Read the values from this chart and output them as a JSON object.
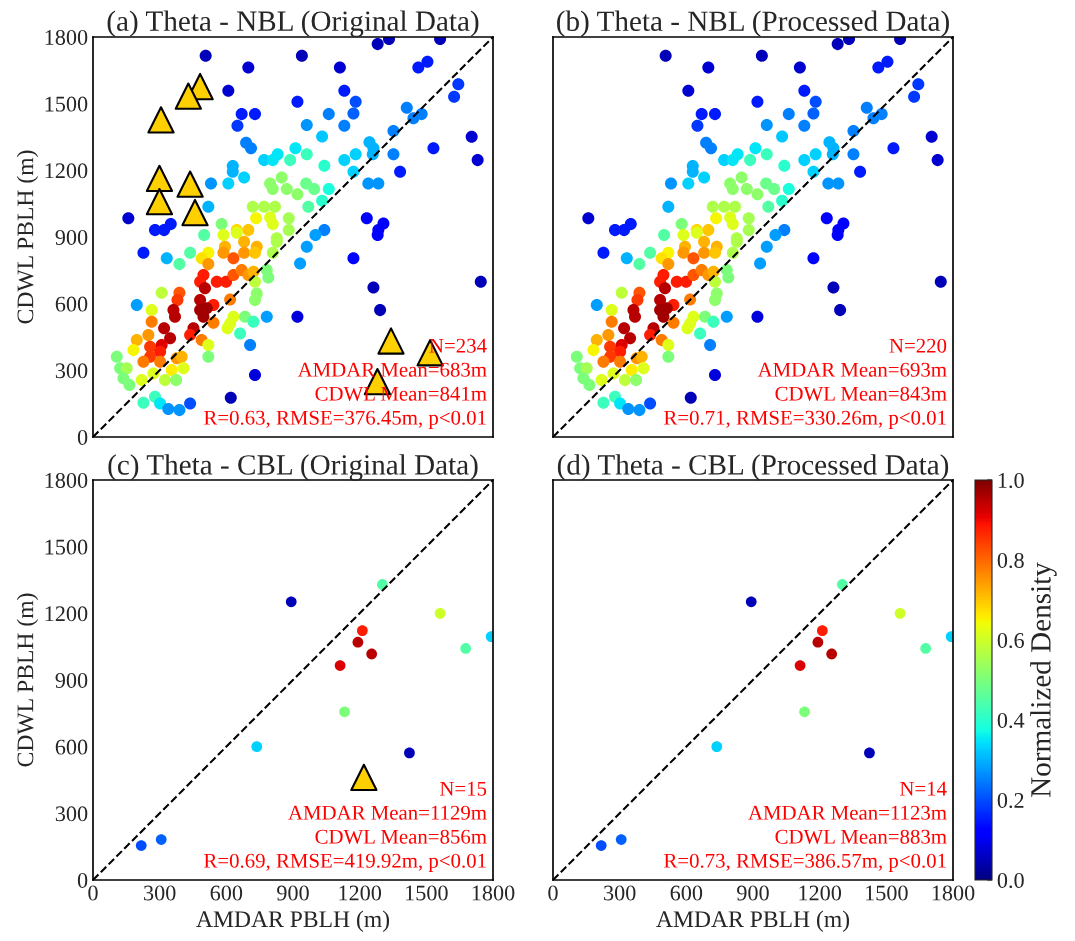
{
  "chart_data": [
    {
      "type": "scatter",
      "title": "(a) Theta - NBL (Original Data)",
      "ylabel": "CDWL PBLH (m)",
      "xlim": [
        0,
        1800
      ],
      "ylim": [
        0,
        1800
      ],
      "xticks": [
        0,
        300,
        600,
        900,
        1200,
        1500,
        1800
      ],
      "yticks": [
        0,
        300,
        600,
        900,
        1200,
        1500,
        1800
      ],
      "tick_labels": "y",
      "legend": false,
      "grid": false,
      "annotations": [
        "N=234",
        "AMDAR Mean=683m",
        "CDWL Mean=841m",
        "R=0.63, RMSE=376.45m, p<0.01"
      ],
      "series": [
        {
          "type": "scatter",
          "marker": "circle",
          "x": [
            507,
            699,
            940,
            1111,
            1281,
            1332,
            1562,
            1464,
            1505,
            1644,
            1625,
            1704,
            1731,
            1532,
            1382,
            1352,
            1352,
            1412,
            1479,
            1442,
            609,
            669,
            729,
            650,
            920,
            1131,
            1182,
            1172,
            1061,
            1131,
            962,
            1031,
            689,
            711,
            1244,
            1262,
            1259,
            1182,
            1131,
            1172,
            770,
            809,
            831,
            911,
            962,
            887,
            1041,
            629,
            629,
            680,
            531,
            609,
            1239,
            1284,
            1061,
            1031,
            969,
            797,
            849,
            809,
            872,
            959,
            995,
            920,
            719,
            770,
            819,
            734,
            797,
            809,
            881,
            881,
            519,
            159,
            279,
            320,
            350,
            1232,
            1307,
            1284,
            1281,
            1041,
            1001,
            579,
            647,
            699,
            587,
            500,
            827,
            227,
            332,
            389,
            437,
            519,
            489,
            594,
            587,
            647,
            680,
            737,
            680,
            729,
            632,
            519,
            809,
            827,
            962,
            932,
            1172,
            497,
            482,
            557,
            599,
            632,
            669,
            699,
            722,
            729,
            782,
            789,
            504,
            737,
            729,
            617,
            309,
            389,
            197,
            380,
            482,
            542,
            264,
            362,
            482,
            512,
            369,
            497,
            542,
            264,
            632,
            617,
            605,
            684,
            722,
            782,
            920,
            320,
            347,
            452,
            437,
            489,
            519,
            662,
            707,
            197,
            249,
            182,
            257,
            309,
            302,
            257,
            227,
            302,
            377,
            399,
            407,
            354,
            272,
            107,
            122,
            152,
            137,
            164,
            219,
            324,
            374,
            519,
            227,
            279,
            302,
            339,
            389,
            437,
            729,
            620,
            1262,
            1292,
            1745
          ],
          "values": [
            1716,
            1663,
            1716,
            1663,
            1768,
            1791,
            1791,
            1663,
            1689,
            1587,
            1531,
            1351,
            1246,
            1299,
            1194,
            1272,
            1377,
            1482,
            1453,
            1434,
            1558,
            1453,
            1453,
            1401,
            1509,
            1558,
            1509,
            1456,
            1453,
            1401,
            1404,
            1352,
            1324,
            1299,
            1326,
            1299,
            1272,
            1272,
            1246,
            1194,
            1246,
            1246,
            1272,
            1299,
            1272,
            1246,
            1221,
            1219,
            1194,
            1168,
            1141,
            1141,
            1141,
            1141,
            1116,
            1063,
            1036,
            1141,
            1168,
            1116,
            1116,
            1141,
            1116,
            1092,
            1036,
            1036,
            1036,
            984,
            988,
            958,
            984,
            931,
            1036,
            984,
            931,
            931,
            958,
            984,
            961,
            931,
            909,
            931,
            909,
            958,
            931,
            931,
            909,
            909,
            894,
            829,
            804,
            778,
            829,
            829,
            804,
            856,
            829,
            919,
            879,
            856,
            829,
            829,
            804,
            778,
            829,
            879,
            856,
            781,
            804,
            729,
            699,
            699,
            699,
            729,
            751,
            729,
            744,
            699,
            751,
            718,
            669,
            646,
            616,
            619,
            649,
            649,
            594,
            616,
            616,
            594,
            571,
            571,
            571,
            579,
            541,
            541,
            514,
            519,
            541,
            511,
            489,
            541,
            519,
            541,
            541,
            489,
            444,
            489,
            459,
            436,
            414,
            466,
            414,
            436,
            459,
            391,
            406,
            414,
            384,
            361,
            339,
            339,
            354,
            361,
            309,
            301,
            286,
            361,
            309,
            309,
            264,
            234,
            256,
            256,
            256,
            361,
            154,
            181,
            151,
            126,
            121,
            151,
            279,
            177,
            673,
            571,
            699
          ],
          "colors": [
            "#0000b9",
            "#0000d0",
            "#0000b9",
            "#0000d0",
            "#0000b9",
            "#0000b9",
            "#0000b9",
            "#001aff",
            "#001aff",
            "#0038ff",
            "#0038ff",
            "#0000d0",
            "#0000d0",
            "#001aff",
            "#001aff",
            "#0080ff",
            "#0080ff",
            "#0080ff",
            "#0080ff",
            "#0080ff",
            "#0000d0",
            "#001aff",
            "#001aff",
            "#0038ff",
            "#001aff",
            "#001aff",
            "#004dff",
            "#0061ff",
            "#0080ff",
            "#0080ff",
            "#0094ff",
            "#00c7ff",
            "#0080ff",
            "#0080ff",
            "#00b3ff",
            "#00b3ff",
            "#00b3ff",
            "#00d1ff",
            "#00d1ff",
            "#00d1ff",
            "#00d1ff",
            "#00e6f7",
            "#00e6f7",
            "#00e6f7",
            "#3affbd",
            "#3affbd",
            "#29ffcd",
            "#00b3ff",
            "#00b3ff",
            "#00d1ff",
            "#0094ff",
            "#00d1ff",
            "#0094ff",
            "#0094ff",
            "#19ffde",
            "#29ffcd",
            "#52ffa4",
            "#8cff6b",
            "#8cff6b",
            "#8cff6b",
            "#8cff6b",
            "#6bff8c",
            "#6bff8c",
            "#8cff6b",
            "#adff4a",
            "#adff4a",
            "#adff4a",
            "#f7f600",
            "#deff19",
            "#deff19",
            "#a4ff52",
            "#a4ff52",
            "#00b3ff",
            "#0000d0",
            "#001aff",
            "#001aff",
            "#001aff",
            "#0000ff",
            "#0000ff",
            "#0000ff",
            "#0000ff",
            "#0080ff",
            "#009eff",
            "#7bff7b",
            "#ffd900",
            "#ffc600",
            "#deff19",
            "#52ffa4",
            "#adff4a",
            "#001aff",
            "#00b3ff",
            "#52ffa4",
            "#52ffa4",
            "#f7f600",
            "#ffe300",
            "#ffb300",
            "#ff9700",
            "#deff19",
            "#ffb300",
            "#ffb300",
            "#ff9700",
            "#ffc600",
            "#ff5500",
            "#ff9700",
            "#adff4a",
            "#adff4a",
            "#009eff",
            "#009eff",
            "#0000ff",
            "#ff1c00",
            "#ff1c00",
            "#ff1c00",
            "#ff1c00",
            "#ff5500",
            "#ff7b00",
            "#ff9700",
            "#ffb300",
            "#bdff3a",
            "#7bff7b",
            "#7bff7b",
            "#b90000",
            "#8cff6b",
            "#8cff6b",
            "#ff7b00",
            "#bdff3a",
            "#ff5500",
            "#009eff",
            "#ff3800",
            "#b90000",
            "#ff1c00",
            "#deff19",
            "#b90000",
            "#a20000",
            "#a20000",
            "#b90000",
            "#a20000",
            "#ff7b00",
            "#ff7b00",
            "#deff19",
            "#deff19",
            "#deff19",
            "#7bff7b",
            "#3affbd",
            "#009eff",
            "#0000dc",
            "#b90000",
            "#b90000",
            "#b90000",
            "#ff1c00",
            "#ff7b00",
            "#deff19",
            "#3affbd",
            "#0080ff",
            "#ffb300",
            "#ff9700",
            "#f7f600",
            "#ff3800",
            "#dc0000",
            "#ff1c00",
            "#ff3800",
            "#ff7b00",
            "#ff7b00",
            "#ff9700",
            "#ffb300",
            "#deff19",
            "#ffec00",
            "#deff19",
            "#7bff7b",
            "#7bff7b",
            "#a4ff52",
            "#7bff7b",
            "#7bff7b",
            "#deff19",
            "#bdff3a",
            "#8cff6b",
            "#7bff7b",
            "#3affbd",
            "#3affbd",
            "#00e6f7",
            "#0094ff",
            "#0094ff",
            "#004dff",
            "#0000dc",
            "#0000b9",
            "#0000b9",
            "#0000b9",
            "#0000b9"
          ]
        },
        {
          "type": "scatter",
          "marker": "triangle",
          "color": "#ffd000",
          "x": [
            482,
            429,
            306,
            299,
            437,
            299,
            459,
            1341,
            1517,
            1280
          ],
          "values": [
            1577,
            1534,
            1427,
            1164,
            1138,
            1059,
            1010,
            432,
            379,
            249
          ]
        },
        {
          "type": "line",
          "x": [
            0,
            1800
          ],
          "values": [
            0,
            1800
          ],
          "color": "#000000",
          "line_style": "dashed"
        }
      ]
    },
    {
      "type": "scatter",
      "title": "(b) Theta - NBL (Processed Data)",
      "xlim": [
        0,
        1800
      ],
      "ylim": [
        0,
        1800
      ],
      "xticks": [
        0,
        300,
        600,
        900,
        1200,
        1500,
        1800
      ],
      "yticks": [
        0,
        300,
        600,
        900,
        1200,
        1500,
        1800
      ],
      "tick_labels": false,
      "legend": false,
      "grid": false,
      "annotations": [
        "N=220",
        "AMDAR Mean=693m",
        "CDWL Mean=843m",
        "R=0.71, RMSE=330.26m, p<0.01"
      ],
      "series": [
        {
          "type": "scatter",
          "marker": "circle",
          "x": [
            507,
            699,
            940,
            1111,
            1281,
            1332,
            1562,
            1464,
            1505,
            1644,
            1625,
            1704,
            1731,
            1532,
            1382,
            1352,
            1352,
            1412,
            1479,
            1442,
            609,
            669,
            729,
            650,
            920,
            1131,
            1182,
            1172,
            1061,
            1131,
            962,
            1031,
            689,
            711,
            1244,
            1262,
            1259,
            1182,
            1131,
            1172,
            770,
            809,
            831,
            911,
            962,
            887,
            1041,
            629,
            629,
            680,
            531,
            609,
            1239,
            1284,
            1061,
            1031,
            969,
            797,
            849,
            809,
            872,
            959,
            995,
            920,
            719,
            770,
            819,
            734,
            797,
            809,
            881,
            881,
            519,
            159,
            279,
            320,
            350,
            1232,
            1307,
            1284,
            1281,
            1041,
            1001,
            579,
            647,
            699,
            587,
            500,
            827,
            227,
            332,
            389,
            437,
            519,
            489,
            594,
            587,
            647,
            680,
            737,
            680,
            729,
            632,
            519,
            809,
            827,
            962,
            932,
            1172,
            497,
            482,
            557,
            599,
            632,
            669,
            699,
            722,
            729,
            782,
            789,
            504,
            737,
            729,
            617,
            309,
            389,
            197,
            380,
            482,
            542,
            264,
            362,
            482,
            512,
            369,
            497,
            542,
            264,
            632,
            617,
            605,
            684,
            722,
            782,
            920,
            320,
            347,
            452,
            437,
            489,
            519,
            662,
            707,
            197,
            249,
            182,
            257,
            309,
            302,
            257,
            227,
            302,
            377,
            399,
            407,
            354,
            272,
            107,
            122,
            152,
            137,
            164,
            219,
            324,
            374,
            519,
            227,
            279,
            302,
            339,
            389,
            437,
            729,
            620,
            1262,
            1292,
            1745
          ],
          "values": [
            1716,
            1663,
            1716,
            1663,
            1768,
            1791,
            1791,
            1663,
            1689,
            1587,
            1531,
            1351,
            1246,
            1299,
            1194,
            1272,
            1377,
            1482,
            1453,
            1434,
            1558,
            1453,
            1453,
            1401,
            1509,
            1558,
            1509,
            1456,
            1453,
            1401,
            1404,
            1352,
            1324,
            1299,
            1326,
            1299,
            1272,
            1272,
            1246,
            1194,
            1246,
            1246,
            1272,
            1299,
            1272,
            1246,
            1221,
            1219,
            1194,
            1168,
            1141,
            1141,
            1141,
            1141,
            1116,
            1063,
            1036,
            1141,
            1168,
            1116,
            1116,
            1141,
            1116,
            1092,
            1036,
            1036,
            1036,
            984,
            988,
            958,
            984,
            931,
            1036,
            984,
            931,
            931,
            958,
            984,
            961,
            931,
            909,
            931,
            909,
            958,
            931,
            931,
            909,
            909,
            894,
            829,
            804,
            778,
            829,
            829,
            804,
            856,
            829,
            919,
            879,
            856,
            829,
            829,
            804,
            778,
            829,
            879,
            856,
            781,
            804,
            729,
            699,
            699,
            699,
            729,
            751,
            729,
            744,
            699,
            751,
            718,
            669,
            646,
            616,
            619,
            649,
            649,
            594,
            616,
            616,
            594,
            571,
            571,
            571,
            579,
            541,
            541,
            514,
            519,
            541,
            511,
            489,
            541,
            519,
            541,
            541,
            489,
            444,
            489,
            459,
            436,
            414,
            466,
            414,
            436,
            459,
            391,
            406,
            414,
            384,
            361,
            339,
            339,
            354,
            361,
            309,
            301,
            286,
            361,
            309,
            309,
            264,
            234,
            256,
            256,
            256,
            361,
            154,
            181,
            151,
            126,
            121,
            151,
            279,
            177,
            673,
            571,
            699
          ],
          "colors": [
            "#0000b9",
            "#0000d0",
            "#0000b9",
            "#0000d0",
            "#0000b9",
            "#0000b9",
            "#0000b9",
            "#001aff",
            "#001aff",
            "#0038ff",
            "#0038ff",
            "#0000d0",
            "#0000d0",
            "#001aff",
            "#001aff",
            "#0080ff",
            "#0080ff",
            "#0080ff",
            "#0080ff",
            "#0080ff",
            "#0000d0",
            "#001aff",
            "#001aff",
            "#0038ff",
            "#001aff",
            "#001aff",
            "#004dff",
            "#0061ff",
            "#0080ff",
            "#0080ff",
            "#0094ff",
            "#00c7ff",
            "#0080ff",
            "#0080ff",
            "#00b3ff",
            "#00b3ff",
            "#00b3ff",
            "#00d1ff",
            "#00d1ff",
            "#00d1ff",
            "#00d1ff",
            "#00e6f7",
            "#00e6f7",
            "#00e6f7",
            "#3affbd",
            "#3affbd",
            "#29ffcd",
            "#00b3ff",
            "#00b3ff",
            "#00d1ff",
            "#0094ff",
            "#00d1ff",
            "#0094ff",
            "#0094ff",
            "#19ffde",
            "#29ffcd",
            "#52ffa4",
            "#8cff6b",
            "#8cff6b",
            "#8cff6b",
            "#8cff6b",
            "#6bff8c",
            "#6bff8c",
            "#8cff6b",
            "#adff4a",
            "#adff4a",
            "#adff4a",
            "#f7f600",
            "#deff19",
            "#deff19",
            "#a4ff52",
            "#a4ff52",
            "#00b3ff",
            "#0000d0",
            "#001aff",
            "#001aff",
            "#001aff",
            "#0000ff",
            "#0000ff",
            "#0000ff",
            "#0000ff",
            "#0080ff",
            "#009eff",
            "#7bff7b",
            "#ffd900",
            "#ffc600",
            "#deff19",
            "#52ffa4",
            "#adff4a",
            "#001aff",
            "#00b3ff",
            "#52ffa4",
            "#52ffa4",
            "#f7f600",
            "#ffe300",
            "#ffb300",
            "#ff9700",
            "#deff19",
            "#ffb300",
            "#ffb300",
            "#ff9700",
            "#ffc600",
            "#ff5500",
            "#ff9700",
            "#adff4a",
            "#adff4a",
            "#009eff",
            "#009eff",
            "#0000ff",
            "#ff1c00",
            "#ff1c00",
            "#ff1c00",
            "#ff1c00",
            "#ff5500",
            "#ff7b00",
            "#ff9700",
            "#ffb300",
            "#bdff3a",
            "#7bff7b",
            "#7bff7b",
            "#b90000",
            "#8cff6b",
            "#8cff6b",
            "#ff7b00",
            "#bdff3a",
            "#ff5500",
            "#009eff",
            "#ff3800",
            "#b90000",
            "#ff1c00",
            "#deff19",
            "#b90000",
            "#a20000",
            "#a20000",
            "#b90000",
            "#a20000",
            "#ff7b00",
            "#ff7b00",
            "#deff19",
            "#deff19",
            "#deff19",
            "#7bff7b",
            "#3affbd",
            "#009eff",
            "#0000dc",
            "#b90000",
            "#b90000",
            "#b90000",
            "#ff1c00",
            "#ff7b00",
            "#deff19",
            "#3affbd",
            "#0080ff",
            "#ffb300",
            "#ff9700",
            "#f7f600",
            "#ff3800",
            "#dc0000",
            "#ff1c00",
            "#ff3800",
            "#ff7b00",
            "#ff7b00",
            "#ff9700",
            "#ffb300",
            "#deff19",
            "#ffec00",
            "#deff19",
            "#7bff7b",
            "#7bff7b",
            "#a4ff52",
            "#7bff7b",
            "#7bff7b",
            "#deff19",
            "#bdff3a",
            "#8cff6b",
            "#7bff7b",
            "#3affbd",
            "#3affbd",
            "#00e6f7",
            "#0094ff",
            "#0094ff",
            "#004dff",
            "#0000dc",
            "#0000b9",
            "#0000b9",
            "#0000b9",
            "#0000b9"
          ]
        },
        {
          "type": "line",
          "x": [
            0,
            1800
          ],
          "values": [
            0,
            1800
          ],
          "color": "#000000",
          "line_style": "dashed"
        }
      ]
    },
    {
      "type": "scatter",
      "title": "(c) Theta - CBL (Original Data)",
      "xlabel": "AMDAR PBLH (m)",
      "ylabel": "CDWL PBLH (m)",
      "xlim": [
        0,
        1800
      ],
      "ylim": [
        0,
        1800
      ],
      "xticks": [
        0,
        300,
        600,
        900,
        1200,
        1500,
        1800
      ],
      "yticks": [
        0,
        300,
        600,
        900,
        1200,
        1500,
        1800
      ],
      "legend": false,
      "grid": false,
      "annotations": [
        "N=15",
        "AMDAR Mean=1129m",
        "CDWL Mean=856m",
        "R=0.69, RMSE=419.92m, p<0.01"
      ],
      "series": [
        {
          "type": "scatter",
          "marker": "circle",
          "x": [
            217,
            307,
            737,
            892,
            1302,
            1562,
            1792,
            1677,
            1212,
            1192,
            1254,
            1112,
            1132,
            1424
          ],
          "values": [
            155,
            182,
            600,
            1252,
            1330,
            1200,
            1095,
            1042,
            1122,
            1070,
            1017,
            965,
            757,
            572
          ],
          "colors": [
            "#004dff",
            "#0061ff",
            "#00d1ff",
            "#0000b9",
            "#52ffa4",
            "#cdff29",
            "#00d1ff",
            "#52ffa4",
            "#ff1c00",
            "#b90000",
            "#b90000",
            "#dc0000",
            "#7bff7b",
            "#0000b9"
          ]
        },
        {
          "type": "scatter",
          "marker": "triangle",
          "color": "#ffd000",
          "x": [
            1219
          ],
          "values": [
            462
          ]
        },
        {
          "type": "line",
          "x": [
            0,
            1800
          ],
          "values": [
            0,
            1800
          ],
          "color": "#000000",
          "line_style": "dashed"
        }
      ]
    },
    {
      "type": "scatter",
      "title": "(d) Theta - CBL (Processed Data)",
      "xlabel": "AMDAR PBLH (m)",
      "xlim": [
        0,
        1800
      ],
      "ylim": [
        0,
        1800
      ],
      "xticks": [
        0,
        300,
        600,
        900,
        1200,
        1500,
        1800
      ],
      "yticks": [
        0,
        300,
        600,
        900,
        1200,
        1500,
        1800
      ],
      "tick_labels": "x",
      "clim": [
        0,
        1
      ],
      "cticks": [
        {
          "value": 0,
          "label": "0.0"
        },
        {
          "value": 0.2,
          "label": "0.2"
        },
        {
          "value": 0.4,
          "label": "0.4"
        },
        {
          "value": 0.6,
          "label": "0.6"
        },
        {
          "value": 0.8,
          "label": "0.8"
        },
        {
          "value": 1,
          "label": "1.0"
        }
      ],
      "clabel": "Normalized Density",
      "legend": false,
      "grid": false,
      "annotations": [
        "N=14",
        "AMDAR Mean=1123m",
        "CDWL Mean=883m",
        "R=0.73, RMSE=386.57m, p<0.01"
      ],
      "series": [
        {
          "type": "scatter",
          "marker": "circle",
          "x": [
            217,
            307,
            737,
            892,
            1302,
            1562,
            1792,
            1677,
            1212,
            1192,
            1254,
            1112,
            1132,
            1424
          ],
          "values": [
            155,
            182,
            600,
            1252,
            1330,
            1200,
            1095,
            1042,
            1122,
            1070,
            1017,
            965,
            757,
            572
          ],
          "colors": [
            "#004dff",
            "#0061ff",
            "#00d1ff",
            "#0000b9",
            "#52ffa4",
            "#cdff29",
            "#00d1ff",
            "#52ffa4",
            "#ff1c00",
            "#b90000",
            "#b90000",
            "#dc0000",
            "#7bff7b",
            "#0000b9"
          ]
        },
        {
          "type": "line",
          "x": [
            0,
            1800
          ],
          "values": [
            0,
            1800
          ],
          "color": "#000000",
          "line_style": "dashed"
        }
      ]
    }
  ]
}
